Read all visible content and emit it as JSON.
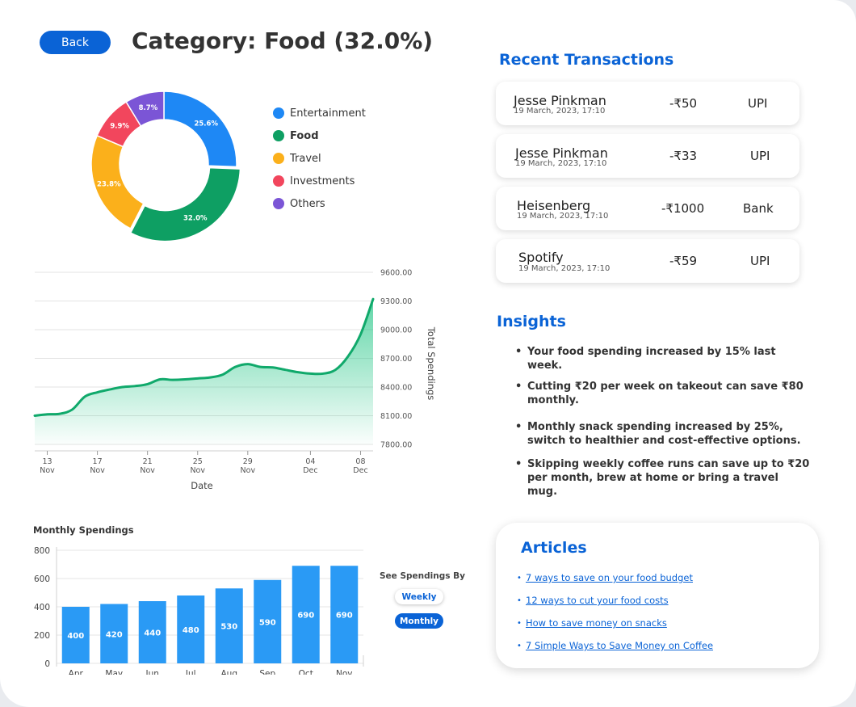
{
  "header": {
    "back_label": "Back",
    "title": "Category: Food (32.0%)"
  },
  "colors": {
    "accent": "#0a63d6",
    "entertainment": "#1e88f5",
    "food": "#0e9f63",
    "travel": "#fbb01b",
    "investments": "#f2465d",
    "others": "#7b55d6",
    "bar": "#2a9af5",
    "line": "#10a96b"
  },
  "legend": [
    {
      "label": "Entertainment",
      "color": "#1e88f5",
      "active": false
    },
    {
      "label": "Food",
      "color": "#0e9f63",
      "active": true
    },
    {
      "label": "Travel",
      "color": "#fbb01b",
      "active": false
    },
    {
      "label": "Investments",
      "color": "#f2465d",
      "active": false
    },
    {
      "label": "Others",
      "color": "#7b55d6",
      "active": false
    }
  ],
  "transactions": {
    "title": "Recent Transactions",
    "items": [
      {
        "name": "Jesse Pinkman",
        "date": "19 March, 2023, 17:10",
        "amount": "-₹50",
        "mode": "UPI"
      },
      {
        "name": "Jesse Pinkman",
        "date": "19 March, 2023, 17:10",
        "amount": "-₹33",
        "mode": "UPI"
      },
      {
        "name": "Heisenberg",
        "date": "19 March, 2023, 17:10",
        "amount": "-₹1000",
        "mode": "Bank"
      },
      {
        "name": "Spotify",
        "date": "19 March, 2023, 17:10",
        "amount": "-₹59",
        "mode": "UPI"
      }
    ]
  },
  "insights": {
    "title": "Insights",
    "items": [
      "Your food spending increased by 15% last week.",
      "Cutting ₹20 per week on takeout can save ₹80 monthly.",
      "Monthly snack spending increased by 25%, switch to healthier and cost-effective options.",
      "Skipping weekly coffee runs can save up to ₹20 per month, brew at home or bring a travel mug."
    ]
  },
  "articles": {
    "title": "Articles",
    "items": [
      "7 ways to save on your food budget",
      "12 ways to cut your food costs",
      "How to save money on snacks",
      "7 Simple Ways to Save Money on Coffee"
    ]
  },
  "toggle": {
    "label": "See Spendings By",
    "weekly": "Weekly",
    "monthly": "Monthly",
    "selected": "Monthly"
  },
  "chart_data": [
    {
      "type": "pie",
      "variant": "donut",
      "slices": [
        {
          "label": "Entertainment",
          "value": 25.6,
          "display": "25.6%",
          "color": "#1e88f5"
        },
        {
          "label": "Food",
          "value": 32.0,
          "display": "32.0%",
          "color": "#0e9f63"
        },
        {
          "label": "Travel",
          "value": 23.8,
          "display": "23.8%",
          "color": "#fbb01b"
        },
        {
          "label": "Investments",
          "value": 9.9,
          "display": "9.9%",
          "color": "#f2465d"
        },
        {
          "label": "Others",
          "value": 8.7,
          "display": "8.7%",
          "color": "#7b55d6"
        }
      ],
      "highlighted": "Food"
    },
    {
      "type": "area",
      "xlabel": "Date",
      "ylabel": "Total Spendings",
      "ylim": [
        7800,
        9600
      ],
      "y_ticks": [
        "7800.00",
        "8100.00",
        "8400.00",
        "8700.00",
        "9000.00",
        "9300.00",
        "9600.00"
      ],
      "x_ticks": [
        {
          "day": "13",
          "month": "Nov"
        },
        {
          "day": "17",
          "month": "Nov"
        },
        {
          "day": "21",
          "month": "Nov"
        },
        {
          "day": "25",
          "month": "Nov"
        },
        {
          "day": "29",
          "month": "Nov"
        },
        {
          "day": "04",
          "month": "Dec"
        },
        {
          "day": "08",
          "month": "Dec"
        }
      ],
      "x": [
        "2022-11-12",
        "2022-11-13",
        "2022-11-14",
        "2022-11-15",
        "2022-11-16",
        "2022-11-17",
        "2022-11-18",
        "2022-11-19",
        "2022-11-20",
        "2022-11-21",
        "2022-11-22",
        "2022-11-23",
        "2022-11-24",
        "2022-11-25",
        "2022-11-26",
        "2022-11-27",
        "2022-11-28",
        "2022-11-29",
        "2022-11-30",
        "2022-12-01",
        "2022-12-02",
        "2022-12-03",
        "2022-12-04",
        "2022-12-05",
        "2022-12-06",
        "2022-12-07",
        "2022-12-08",
        "2022-12-09"
      ],
      "values": [
        8100,
        8115,
        8120,
        8165,
        8300,
        8345,
        8375,
        8400,
        8410,
        8430,
        8480,
        8475,
        8480,
        8490,
        8500,
        8530,
        8610,
        8640,
        8610,
        8605,
        8580,
        8555,
        8540,
        8540,
        8580,
        8720,
        8950,
        9320
      ],
      "grid": true,
      "y_axis_side": "right"
    },
    {
      "type": "bar",
      "title": "Monthly Spendings",
      "categories": [
        "Apr",
        "May",
        "Jun",
        "Jul",
        "Aug",
        "Sep",
        "Oct",
        "Nov"
      ],
      "values": [
        400,
        420,
        440,
        480,
        530,
        590,
        690,
        690
      ],
      "ylim": [
        0,
        800
      ],
      "y_ticks": [
        0,
        200,
        400,
        600,
        800
      ],
      "grid": true
    }
  ]
}
